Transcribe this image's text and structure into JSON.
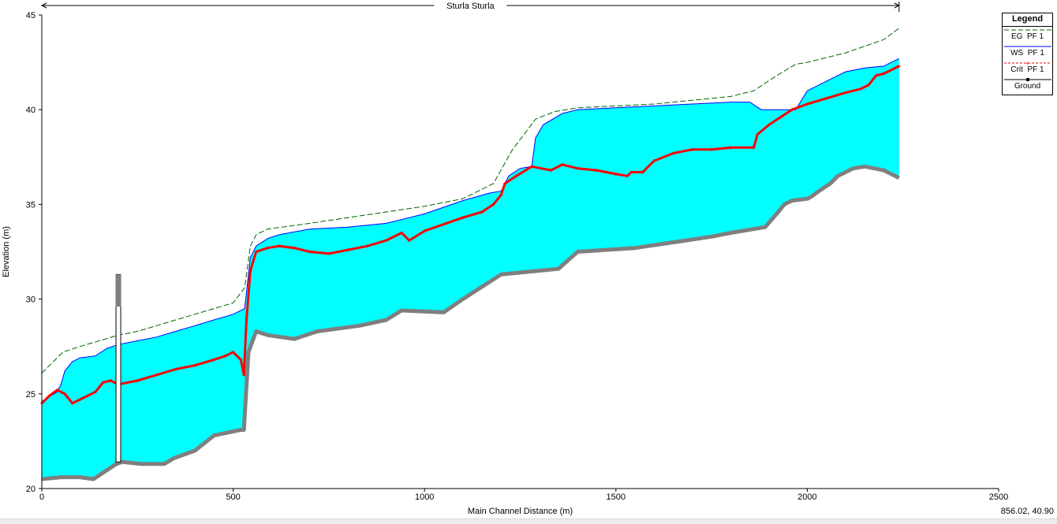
{
  "chart_data": {
    "type": "line",
    "title": "Sturla Sturla",
    "xlabel": "Main Channel Distance (m)",
    "ylabel": "Elevation (m)",
    "xlim": [
      0,
      2500
    ],
    "ylim": [
      20,
      45
    ],
    "xticks": [
      0,
      500,
      1000,
      1500,
      2000,
      2500
    ],
    "yticks": [
      20,
      25,
      30,
      35,
      40,
      45
    ],
    "reach_span": [
      0,
      2240
    ],
    "legend_title": "Legend",
    "legend_position": "top-right",
    "series": [
      {
        "name": "EG  PF 1",
        "color": "#006400",
        "style": "dashed",
        "x": [
          0,
          30,
          55,
          100,
          150,
          200,
          250,
          300,
          350,
          400,
          450,
          500,
          530,
          545,
          560,
          590,
          700,
          800,
          900,
          1000,
          1100,
          1180,
          1230,
          1260,
          1290,
          1340,
          1400,
          1500,
          1600,
          1700,
          1800,
          1860,
          1920,
          1970,
          2000,
          2100,
          2200,
          2240
        ],
        "y": [
          26.1,
          26.7,
          27.2,
          27.5,
          27.8,
          28.1,
          28.3,
          28.6,
          28.9,
          29.2,
          29.5,
          29.8,
          30.6,
          32.8,
          33.4,
          33.7,
          34.0,
          34.3,
          34.6,
          34.9,
          35.3,
          36.1,
          37.9,
          38.7,
          39.5,
          39.9,
          40.1,
          40.2,
          40.3,
          40.5,
          40.7,
          41.0,
          41.8,
          42.4,
          42.5,
          43.0,
          43.7,
          44.3
        ]
      },
      {
        "name": "WS  PF 1",
        "color": "#0000ff",
        "style": "solid",
        "x": [
          0,
          40,
          50,
          60,
          80,
          100,
          140,
          170,
          200,
          250,
          300,
          350,
          400,
          450,
          500,
          530,
          545,
          560,
          590,
          620,
          700,
          800,
          900,
          960,
          1000,
          1100,
          1170,
          1200,
          1220,
          1250,
          1280,
          1290,
          1310,
          1360,
          1400,
          1500,
          1600,
          1700,
          1800,
          1850,
          1880,
          1900,
          1950,
          1970,
          2000,
          2050,
          2100,
          2150,
          2200,
          2240
        ],
        "y": [
          24.6,
          25.1,
          25.5,
          26.2,
          26.7,
          26.9,
          27.0,
          27.4,
          27.6,
          27.8,
          28.0,
          28.3,
          28.6,
          28.9,
          29.2,
          29.5,
          32.2,
          32.8,
          33.2,
          33.4,
          33.7,
          33.8,
          34.0,
          34.3,
          34.5,
          35.2,
          35.6,
          35.7,
          36.5,
          36.9,
          37.0,
          38.5,
          39.2,
          39.8,
          40.0,
          40.1,
          40.2,
          40.3,
          40.4,
          40.4,
          40.0,
          40.0,
          40.0,
          40.0,
          41.0,
          41.5,
          42.0,
          42.2,
          42.3,
          42.7
        ]
      },
      {
        "name": "Crit  PF 1",
        "color": "#ff0000",
        "style": "solid-crosses",
        "x": [
          0,
          20,
          40,
          60,
          80,
          100,
          120,
          140,
          160,
          180,
          200,
          250,
          300,
          350,
          400,
          450,
          480,
          500,
          520,
          528,
          535,
          545,
          560,
          590,
          620,
          660,
          700,
          750,
          800,
          850,
          900,
          940,
          960,
          1000,
          1100,
          1150,
          1180,
          1200,
          1210,
          1240,
          1280,
          1330,
          1360,
          1400,
          1450,
          1500,
          1530,
          1540,
          1570,
          1600,
          1650,
          1700,
          1750,
          1800,
          1860,
          1870,
          1900,
          1930,
          1960,
          2000,
          2050,
          2100,
          2140,
          2160,
          2180,
          2200,
          2240
        ],
        "y": [
          24.5,
          24.9,
          25.2,
          25.0,
          24.5,
          24.7,
          24.9,
          25.1,
          25.6,
          25.7,
          25.5,
          25.7,
          26.0,
          26.3,
          26.5,
          26.8,
          27.0,
          27.2,
          26.8,
          26.0,
          29.0,
          31.5,
          32.5,
          32.7,
          32.8,
          32.7,
          32.5,
          32.4,
          32.6,
          32.8,
          33.1,
          33.5,
          33.1,
          33.6,
          34.3,
          34.6,
          35.0,
          35.5,
          36.1,
          36.5,
          37.0,
          36.8,
          37.1,
          36.9,
          36.8,
          36.6,
          36.5,
          36.7,
          36.7,
          37.3,
          37.7,
          37.9,
          37.9,
          38.0,
          38.0,
          38.7,
          39.2,
          39.6,
          40.0,
          40.3,
          40.6,
          40.9,
          41.1,
          41.3,
          41.8,
          41.9,
          42.3
        ]
      },
      {
        "name": "Ground",
        "color": "#808080",
        "style": "thick",
        "x": [
          0,
          50,
          100,
          135,
          150,
          195,
          210,
          260,
          320,
          345,
          400,
          450,
          520,
          528,
          540,
          560,
          590,
          660,
          720,
          830,
          900,
          940,
          1050,
          1100,
          1200,
          1300,
          1350,
          1400,
          1550,
          1650,
          1750,
          1800,
          1890,
          1920,
          1940,
          1960,
          2000,
          2010,
          2030,
          2060,
          2080,
          2120,
          2150,
          2200,
          2240
        ],
        "y": [
          20.5,
          20.6,
          20.6,
          20.5,
          20.7,
          21.3,
          21.4,
          21.3,
          21.3,
          21.6,
          22.0,
          22.8,
          23.1,
          23.1,
          27.2,
          28.3,
          28.1,
          27.9,
          28.3,
          28.6,
          28.9,
          29.4,
          29.3,
          30.0,
          31.3,
          31.5,
          31.6,
          32.5,
          32.7,
          33.0,
          33.3,
          33.5,
          33.8,
          34.5,
          35.0,
          35.2,
          35.3,
          35.4,
          35.7,
          36.1,
          36.5,
          36.9,
          37.0,
          36.8,
          36.4
        ]
      }
    ],
    "structure": {
      "x": 200,
      "bottom": 21.4,
      "top": 31.3
    }
  },
  "legend": {
    "title": "Legend",
    "items": [
      "EG  PF 1",
      "WS  PF 1",
      "Crit  PF 1",
      "Ground"
    ]
  },
  "status": {
    "cursor_readout": "856.02, 40.90"
  },
  "colors": {
    "water_fill": "#00ffff",
    "background": "#ffffff"
  }
}
